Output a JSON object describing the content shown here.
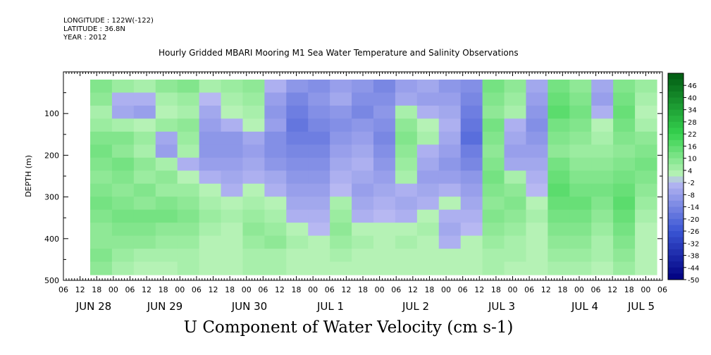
{
  "meta": {
    "longitude": "LONGITUDE : 122W(-122)",
    "latitude": "LATITUDE : 36.8N",
    "year": "YEAR : 2012"
  },
  "title": "Hourly Gridded MBARI Mooring M1 Sea Water Temperature and Salinity Observations",
  "caption": "U Component of Water Velocity (cm s-1)",
  "chart_data": {
    "type": "heatmap",
    "title": "Hourly Gridded MBARI Mooring M1 Sea Water Temperature and Salinity Observations",
    "xlabel": "",
    "ylabel": "DEPTH (m)",
    "ylim": [
      500,
      0
    ],
    "y_ticks": [
      100,
      200,
      300,
      400,
      500
    ],
    "x_hour_ticks": [
      "06",
      "12",
      "18",
      "00",
      "06",
      "12",
      "18",
      "00",
      "06",
      "12",
      "18",
      "00",
      "06",
      "12",
      "18",
      "00",
      "06",
      "12",
      "18",
      "00",
      "06",
      "12",
      "18",
      "00",
      "06",
      "12",
      "18",
      "00",
      "06",
      "12",
      "18",
      "00",
      "06",
      "12",
      "18",
      "00",
      "06"
    ],
    "x_day_labels": [
      "JUN 28",
      "JUN 29",
      "JUN 30",
      "JUL  1",
      "JUL  2",
      "JUL  3",
      "JUL  4",
      "JUL  5"
    ],
    "colorbar_labels": [
      "46",
      "40",
      "34",
      "28",
      "22",
      "16",
      "10",
      "4",
      "-2",
      "-8",
      "-14",
      "-20",
      "-26",
      "-32",
      "-38",
      "-44",
      "-50"
    ],
    "colorbar_range": [
      -50,
      52
    ],
    "colorbar_step": 3,
    "colors": {
      "negative_strong": "#000080",
      "negative_mid": "#3a55d4",
      "negative_light": "#b7b8f2",
      "positive_light": "#b5f2b5",
      "positive_mid": "#35d24e",
      "positive_strong": "#005a12"
    },
    "columns": [
      {
        "time": "JUN 28 12",
        "values": [
          10,
          8,
          4,
          6,
          10,
          12,
          10,
          8,
          10,
          12,
          10,
          8,
          8,
          10,
          8
        ]
      },
      {
        "time": "JUN 28 18",
        "values": [
          6,
          -4,
          -6,
          4,
          10,
          8,
          12,
          10,
          8,
          10,
          12,
          10,
          8,
          6,
          4
        ]
      },
      {
        "time": "JUN 29 00",
        "values": [
          4,
          -4,
          -8,
          2,
          6,
          4,
          8,
          6,
          10,
          8,
          12,
          10,
          8,
          4,
          2
        ]
      },
      {
        "time": "JUN 29 06",
        "values": [
          8,
          4,
          2,
          6,
          -6,
          -8,
          4,
          8,
          6,
          10,
          12,
          8,
          6,
          4,
          2
        ]
      },
      {
        "time": "JUN 29 12",
        "values": [
          10,
          6,
          4,
          8,
          6,
          4,
          -4,
          2,
          6,
          8,
          10,
          8,
          6,
          4,
          4
        ]
      },
      {
        "time": "JUN 29 18",
        "values": [
          4,
          -2,
          -6,
          -8,
          -10,
          -10,
          -8,
          -4,
          2,
          4,
          6,
          4,
          2,
          2,
          2
        ]
      },
      {
        "time": "JUN 30 00",
        "values": [
          6,
          4,
          2,
          -4,
          -10,
          -10,
          -8,
          -6,
          -4,
          2,
          4,
          2,
          2,
          2,
          2
        ]
      },
      {
        "time": "JUN 30 06",
        "values": [
          8,
          6,
          4,
          2,
          -6,
          -8,
          -6,
          -4,
          2,
          4,
          6,
          8,
          6,
          4,
          4
        ]
      },
      {
        "time": "JUN 30 12",
        "values": [
          -4,
          -8,
          -10,
          -8,
          -12,
          -12,
          -10,
          -6,
          -4,
          2,
          4,
          6,
          8,
          4,
          4
        ]
      },
      {
        "time": "JUN 30 18",
        "values": [
          -10,
          -14,
          -16,
          -18,
          -16,
          -14,
          -12,
          -10,
          -8,
          -6,
          -4,
          2,
          4,
          2,
          2
        ]
      },
      {
        "time": "JUL 1 00",
        "values": [
          -12,
          -10,
          -12,
          -14,
          -16,
          -14,
          -12,
          -10,
          -8,
          -6,
          -4,
          -2,
          2,
          2,
          2
        ]
      },
      {
        "time": "JUL 1 06",
        "values": [
          -8,
          -6,
          -10,
          -12,
          -10,
          -8,
          -6,
          -4,
          -2,
          4,
          6,
          8,
          6,
          4,
          2
        ]
      },
      {
        "time": "JUL 1 12",
        "values": [
          -10,
          -12,
          -14,
          -10,
          -8,
          -6,
          -4,
          -6,
          -8,
          -6,
          -4,
          2,
          4,
          2,
          2
        ]
      },
      {
        "time": "JUL 1 18",
        "values": [
          -14,
          -12,
          -10,
          -12,
          -14,
          -12,
          -10,
          -8,
          -6,
          -4,
          -2,
          2,
          2,
          2,
          2
        ]
      },
      {
        "time": "JUL 2 00",
        "values": [
          -8,
          -6,
          4,
          8,
          10,
          8,
          6,
          4,
          -4,
          -6,
          -4,
          2,
          4,
          2,
          2
        ]
      },
      {
        "time": "JUL 2 06",
        "values": [
          -6,
          -8,
          -4,
          2,
          4,
          -4,
          -6,
          -8,
          -6,
          -4,
          2,
          4,
          2,
          2,
          2
        ]
      },
      {
        "time": "JUL 2 12",
        "values": [
          -10,
          -8,
          -6,
          -4,
          -6,
          -8,
          -10,
          -8,
          -4,
          2,
          -4,
          -6,
          -4,
          2,
          2
        ]
      },
      {
        "time": "JUL 2 18",
        "values": [
          -12,
          -14,
          -16,
          -18,
          -20,
          -16,
          -14,
          -10,
          -8,
          -6,
          -4,
          -2,
          2,
          2,
          2
        ]
      },
      {
        "time": "JUL 3 00",
        "values": [
          12,
          10,
          8,
          12,
          10,
          8,
          10,
          12,
          10,
          8,
          10,
          8,
          6,
          4,
          4
        ]
      },
      {
        "time": "JUL 3 06",
        "values": [
          8,
          6,
          4,
          -4,
          -6,
          -8,
          -6,
          4,
          8,
          10,
          8,
          6,
          4,
          4,
          2
        ]
      },
      {
        "time": "JUL 3 12",
        "values": [
          -6,
          -8,
          -10,
          -12,
          -10,
          -8,
          -6,
          -4,
          -2,
          2,
          4,
          2,
          2,
          2,
          2
        ]
      },
      {
        "time": "JUL 3 18",
        "values": [
          12,
          14,
          16,
          12,
          10,
          8,
          12,
          14,
          16,
          14,
          12,
          10,
          8,
          6,
          4
        ]
      },
      {
        "time": "JUL 4 00",
        "values": [
          8,
          10,
          12,
          10,
          8,
          6,
          8,
          10,
          12,
          14,
          12,
          10,
          8,
          6,
          4
        ]
      },
      {
        "time": "JUL 4 06",
        "values": [
          -6,
          -8,
          -4,
          2,
          4,
          6,
          8,
          10,
          12,
          10,
          8,
          6,
          4,
          4,
          2
        ]
      },
      {
        "time": "JUL 4 12",
        "values": [
          10,
          12,
          14,
          12,
          10,
          8,
          10,
          12,
          14,
          16,
          14,
          12,
          10,
          8,
          6
        ]
      },
      {
        "time": "JUL 4 18",
        "values": [
          6,
          4,
          2,
          4,
          8,
          10,
          12,
          10,
          8,
          6,
          4,
          2,
          2,
          2,
          2
        ]
      }
    ]
  }
}
